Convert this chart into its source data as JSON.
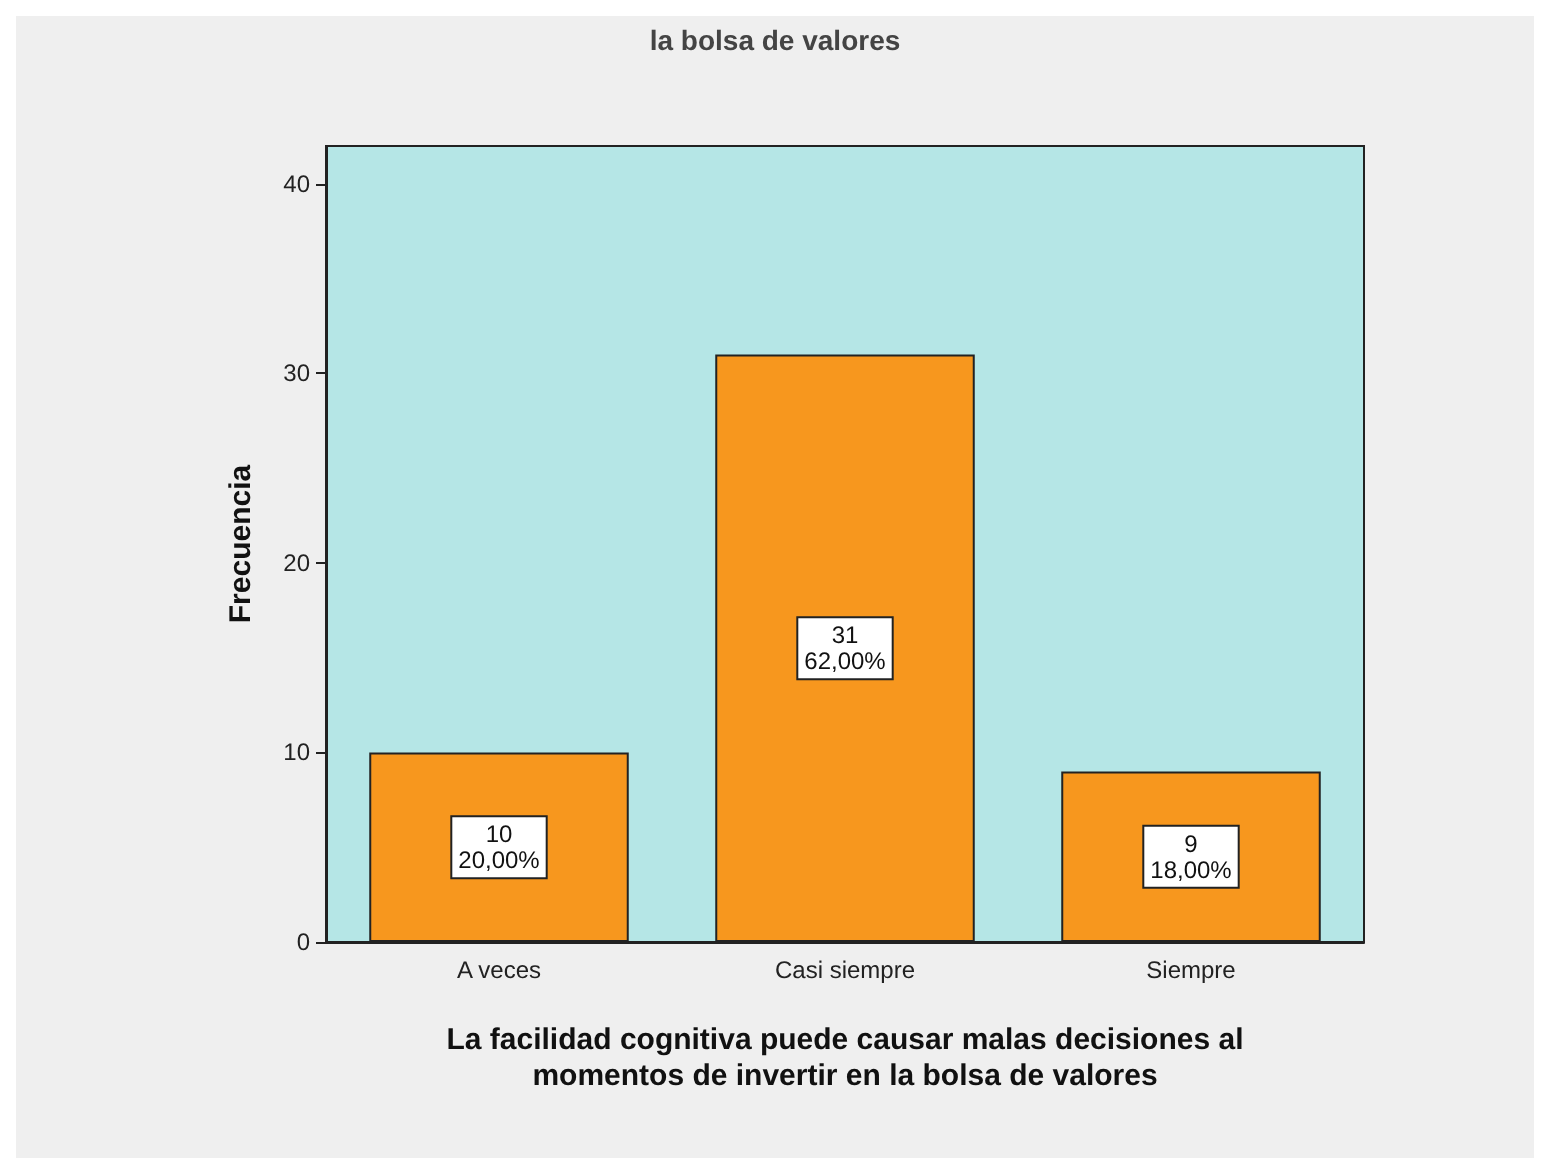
{
  "chart_data": {
    "type": "bar",
    "title": "la bolsa de valores",
    "xlabel": "La facilidad cognitiva puede causar malas decisiones al\nmomentos de invertir en la bolsa de valores",
    "ylabel": "Frecuencia",
    "categories": [
      "A veces",
      "Casi siempre",
      "Siempre"
    ],
    "values": [
      10,
      31,
      9
    ],
    "value_labels": [
      "10\n20,00%",
      "31\n62,00%",
      "9\n18,00%"
    ],
    "color": "#f7971e",
    "ylim": [
      0,
      42
    ],
    "yticks": [
      0,
      10,
      20,
      30,
      40
    ],
    "grid": false
  }
}
